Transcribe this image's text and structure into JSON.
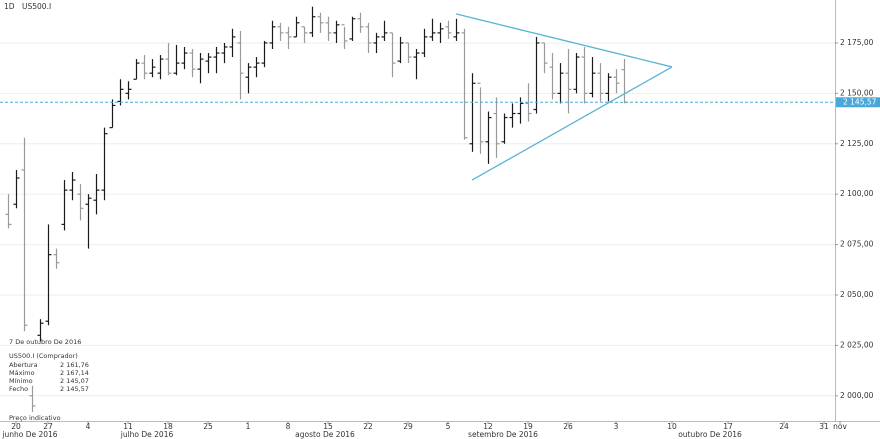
{
  "chart_data": {
    "type": "ohlc",
    "timeframe": "1D",
    "symbol": "US500.I",
    "categories": [
      null,
      "20",
      null,
      null,
      null,
      "27",
      null,
      null,
      null,
      null,
      "4",
      null,
      null,
      null,
      null,
      "11",
      null,
      null,
      null,
      null,
      "18",
      null,
      null,
      null,
      null,
      "25",
      null,
      null,
      null,
      null,
      "1",
      null,
      null,
      null,
      null,
      "8",
      null,
      null,
      null,
      null,
      "15",
      null,
      null,
      null,
      null,
      "22",
      null,
      null,
      null,
      null,
      "29",
      null,
      null,
      null,
      null,
      "5",
      null,
      null,
      null,
      null,
      "12",
      null,
      null,
      null,
      null,
      "19",
      null,
      null,
      null,
      null,
      "26",
      null,
      null,
      null,
      null,
      null,
      "3",
      null,
      null,
      null,
      null,
      null,
      null,
      "10",
      null,
      null,
      null,
      null,
      null,
      null,
      "17",
      null,
      null,
      null,
      null,
      null,
      null,
      "24",
      null,
      null,
      null,
      null,
      "31",
      null,
      "nov"
    ],
    "months": [
      "junho De 2016",
      "julho De 2016",
      "agosto De 2016",
      "setembro De 2016",
      "outubro De 2016"
    ],
    "open": [
      2090,
      2095,
      2112,
      2000,
      2030,
      2037,
      2070,
      2085,
      2102,
      2100,
      2095,
      2097,
      2102,
      2133,
      2146,
      2150,
      2157,
      2165,
      2160,
      2160,
      2167,
      2160,
      2165,
      2170,
      2162,
      2166,
      2168,
      2170,
      2173,
      2175,
      2158,
      2163,
      2165,
      2175,
      2183,
      2180,
      2178,
      2183,
      2180,
      2188,
      2185,
      2180,
      2184,
      2177,
      2187,
      2183,
      2175,
      2178,
      2180,
      2166,
      2175,
      2168,
      2170,
      2178,
      2180,
      2183,
      2178,
      2180,
      2125,
      2155,
      2126,
      2140,
      2126,
      2138,
      2140,
      2145,
      2142,
      2175,
      2163,
      2150,
      2160,
      2152,
      2168,
      2150,
      2160,
      2150,
      2158,
      2161.76,
      null,
      null,
      null,
      null,
      null,
      null,
      null,
      null,
      null,
      null,
      null,
      null,
      null,
      null,
      null,
      null,
      null,
      null,
      null,
      null,
      null,
      null,
      null,
      null,
      null,
      null,
      null
    ],
    "high": [
      2100,
      2112,
      2128,
      2005,
      2038,
      2085,
      2073,
      2107,
      2111,
      2105,
      2100,
      2110,
      2133,
      2147,
      2157,
      2156,
      2167,
      2169,
      2167,
      2169,
      2175,
      2174,
      2173,
      2172,
      2170,
      2170,
      2173,
      2175,
      2182,
      2181,
      2165,
      2168,
      2176,
      2186,
      2185,
      2183,
      2188,
      2183,
      2193,
      2190,
      2188,
      2186,
      2183,
      2188,
      2190,
      2185,
      2180,
      2186,
      2180,
      2178,
      2175,
      2172,
      2182,
      2187,
      2185,
      2186,
      2187,
      2182,
      2160,
      2153,
      2141,
      2148,
      2140,
      2145,
      2148,
      2155,
      2178,
      2175,
      2170,
      2165,
      2172,
      2170,
      2173,
      2168,
      2165,
      2160,
      2162,
      2167.14,
      null,
      null,
      null,
      null,
      null,
      null,
      null,
      null,
      null,
      null,
      null,
      null,
      null,
      null,
      null,
      null,
      null,
      null,
      null,
      null,
      null,
      null,
      null,
      null,
      null,
      null,
      null
    ],
    "low": [
      2083,
      2093,
      2032,
      1992,
      2027,
      2035,
      2063,
      2082,
      2097,
      2087,
      2073,
      2090,
      2097,
      2133,
      2144,
      2147,
      2157,
      2157,
      2158,
      2157,
      2159,
      2159,
      2162,
      2158,
      2155,
      2160,
      2160,
      2165,
      2168,
      2147,
      2150,
      2158,
      2163,
      2172,
      2176,
      2172,
      2178,
      2175,
      2178,
      2180,
      2176,
      2175,
      2172,
      2176,
      2180,
      2170,
      2170,
      2176,
      2158,
      2165,
      2165,
      2157,
      2168,
      2176,
      2175,
      2177,
      2176,
      2127,
      2121,
      2120,
      2115,
      2118,
      2125,
      2133,
      2135,
      2136,
      2140,
      2160,
      2147,
      2145,
      2140,
      2150,
      2145,
      2148,
      2146,
      2146,
      2150,
      2145.07,
      null,
      null,
      null,
      null,
      null,
      null,
      null,
      null,
      null,
      null,
      null,
      null,
      null,
      null,
      null,
      null,
      null,
      null,
      null,
      null,
      null,
      null,
      null,
      null,
      null,
      null,
      null
    ],
    "close": [
      2085,
      2108,
      2035,
      1995,
      2036,
      2070,
      2066,
      2102,
      2107,
      2093,
      2098,
      2102,
      2130,
      2144,
      2152,
      2152,
      2165,
      2160,
      2163,
      2167,
      2160,
      2165,
      2170,
      2162,
      2167,
      2168,
      2170,
      2173,
      2178,
      2160,
      2163,
      2165,
      2175,
      2183,
      2180,
      2178,
      2185,
      2180,
      2188,
      2185,
      2180,
      2184,
      2176,
      2187,
      2183,
      2175,
      2178,
      2180,
      2165,
      2175,
      2168,
      2170,
      2178,
      2180,
      2182,
      2180,
      2180,
      2128,
      2155,
      2126,
      2138,
      2125,
      2138,
      2140,
      2145,
      2140,
      2175,
      2165,
      2150,
      2160,
      2152,
      2168,
      2150,
      2160,
      2150,
      2158,
      2155,
      2145.57,
      null,
      null,
      null,
      null,
      null,
      null,
      null,
      null,
      null,
      null,
      null,
      null,
      null,
      null,
      null,
      null,
      null,
      null,
      null,
      null,
      null,
      null,
      null,
      null,
      null,
      null,
      null
    ],
    "up_color": "#1a1a1a",
    "down_color": "#9a9a9a",
    "ylim": [
      1987.5,
      2196.3
    ],
    "yticks": [
      {
        "value": 2000,
        "label": "2 000,00"
      },
      {
        "value": 2025,
        "label": "2 025,00"
      },
      {
        "value": 2050,
        "label": "2 050,00"
      },
      {
        "value": 2075,
        "label": "2 075,00"
      },
      {
        "value": 2100,
        "label": "2 100,00"
      },
      {
        "value": 2125,
        "label": "2 125,00"
      },
      {
        "value": 2150,
        "label": "2 150,00"
      },
      {
        "value": 2175,
        "label": "2 175,00"
      }
    ],
    "last_price": {
      "value": 2145.57,
      "label": "2 145,57",
      "color": "#4aa8d8"
    },
    "trendlines": {
      "color": "#5ab4d6",
      "lines": [
        {
          "x": [
            56,
            83
          ],
          "y": [
            2189.4,
            2163.1
          ]
        },
        {
          "x": [
            58,
            83
          ],
          "y": [
            2107,
            2163.1
          ]
        }
      ]
    },
    "info": {
      "date": "7 De outubro De 2016",
      "instrument": "US500.I (Comprador)",
      "rows": [
        {
          "label": "Abertura",
          "value": "2 161,76"
        },
        {
          "label": "Máximo",
          "value": "2 167,14"
        },
        {
          "label": "Mínimo",
          "value": "2 145,07"
        },
        {
          "label": "Fecho",
          "value": "2 145,57"
        }
      ],
      "note": "Preço indicativo"
    }
  }
}
